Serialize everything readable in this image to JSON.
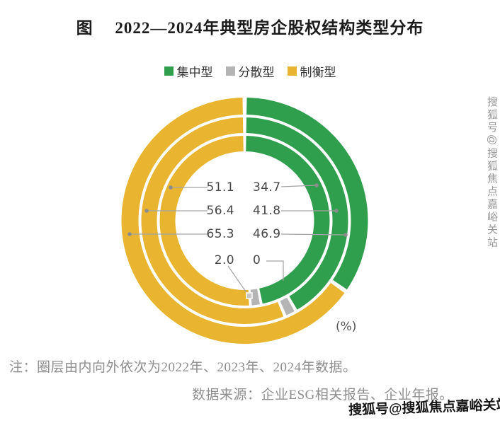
{
  "page": {
    "title": "图　 2022—2024年典型房企股权结构类型分布",
    "note": "注：圈层由内向外依次为2022年、2023年、2024年数据。",
    "source": "数据来源：企业ESG相关报告、企业年报。",
    "unit_label": "(%)",
    "watermark_side": "搜狐号@搜狐焦点嘉峪关站",
    "watermark_bottom": "搜狐号@搜狐焦点嘉峪关站"
  },
  "chart_data": {
    "type": "pie",
    "subtype": "multi-ring-donut",
    "title": "图　2022—2024年典型房企股权结构类型分布",
    "unit": "%",
    "legend_position": "top",
    "categories": [
      "集中型",
      "分散型",
      "制衡型"
    ],
    "colors": {
      "集中型": "#2f9e4d",
      "分散型": "#b4b4b4",
      "制衡型": "#e9b530"
    },
    "rings": [
      {
        "year": "2022",
        "position": "inner",
        "values": {
          "集中型": 46.9,
          "分散型": 2.0,
          "制衡型": 51.1
        }
      },
      {
        "year": "2023",
        "position": "middle",
        "values": {
          "集中型": 41.8,
          "分散型": 1.8,
          "制衡型": 56.4
        }
      },
      {
        "year": "2024",
        "position": "outer",
        "values": {
          "集中型": 34.7,
          "分散型": 0,
          "制衡型": 65.3
        }
      }
    ],
    "center_labels": {
      "rows": [
        {
          "left": "51.1",
          "right": "34.7"
        },
        {
          "left": "56.4",
          "right": "41.8"
        },
        {
          "left": "65.3",
          "right": "46.9"
        },
        {
          "left": "2.0",
          "right": "0"
        }
      ]
    },
    "legend": [
      {
        "label": "集中型",
        "color": "#2f9e4d"
      },
      {
        "label": "分散型",
        "color": "#b4b4b4"
      },
      {
        "label": "制衡型",
        "color": "#e9b530"
      }
    ]
  }
}
